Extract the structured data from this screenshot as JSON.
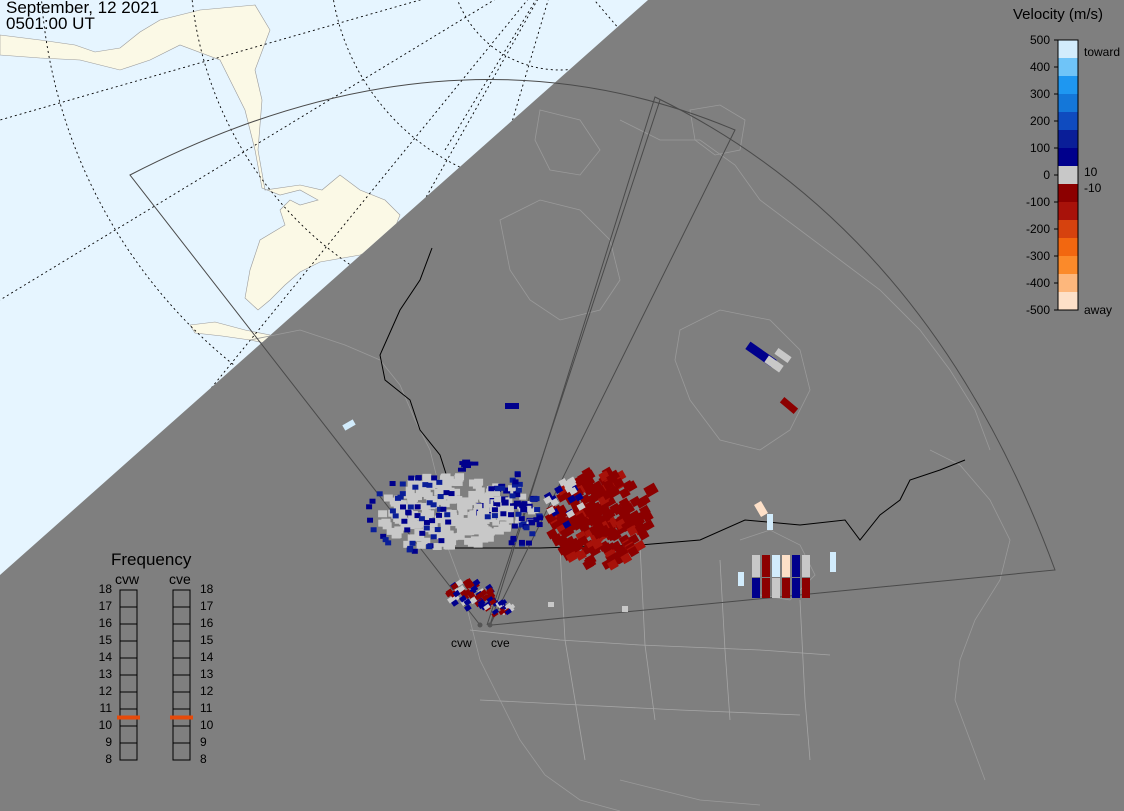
{
  "header": {
    "date": "September, 12 2021",
    "time": "0501:00 UT"
  },
  "velocity_scale": {
    "title": "Velocity (m/s)",
    "ticks": [
      "500",
      "400",
      "300",
      "200",
      "100",
      "0",
      "-100",
      "-200",
      "-300",
      "-400",
      "-500"
    ],
    "labels": {
      "toward": "toward",
      "away": "away",
      "pos_limit": "10",
      "neg_limit": "-10"
    },
    "colors": [
      "#fde0c8",
      "#fdb77c",
      "#fb8a2a",
      "#f26710",
      "#d6420e",
      "#a8120a",
      "#8c0000",
      "#c8c8c8",
      "#00008c",
      "#0a1e98",
      "#0f4bbf",
      "#1477d9",
      "#1e97f1",
      "#6fc4f8",
      "#d2ecfc"
    ]
  },
  "frequency": {
    "title": "Frequency",
    "radars": [
      {
        "name": "cvw",
        "value_mhz": 10.5
      },
      {
        "name": "cve",
        "value_mhz": 10.5
      }
    ],
    "scale": [
      "18",
      "17",
      "16",
      "15",
      "14",
      "13",
      "12",
      "11",
      "10",
      "9",
      "8"
    ],
    "marker_color": "#e64a0a"
  },
  "map": {
    "ocean_color": "#e6f5ff",
    "land_color": "#fbf9e6",
    "night_color": "#7f7f7f",
    "scatter_color_ground": "#c8c8c8",
    "radar_sites": [
      {
        "name": "cvw"
      },
      {
        "name": "cve"
      }
    ]
  }
}
